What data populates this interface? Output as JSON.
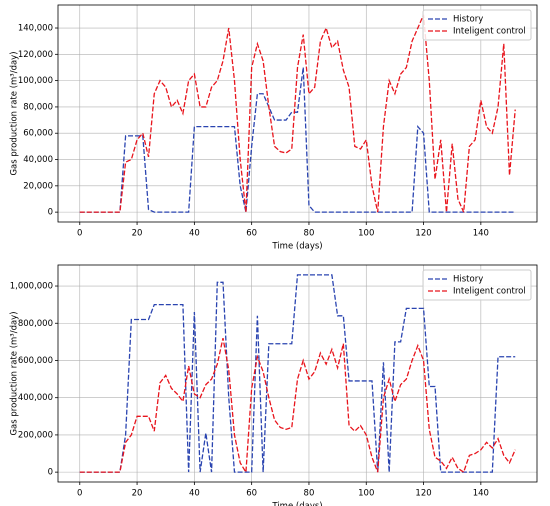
{
  "chart_data": [
    {
      "type": "line",
      "xlabel": "Time (days)",
      "ylabel": "Gas production rate (m³/day)",
      "x": [
        0,
        2,
        4,
        6,
        8,
        10,
        12,
        14,
        16,
        18,
        20,
        22,
        24,
        26,
        28,
        30,
        32,
        34,
        36,
        38,
        40,
        42,
        44,
        46,
        48,
        50,
        52,
        54,
        56,
        58,
        60,
        62,
        64,
        66,
        68,
        70,
        72,
        74,
        76,
        78,
        80,
        82,
        84,
        86,
        88,
        90,
        92,
        94,
        96,
        98,
        100,
        102,
        104,
        106,
        108,
        110,
        112,
        114,
        116,
        118,
        120,
        122,
        124,
        126,
        128,
        130,
        132,
        134,
        136,
        138,
        140,
        142,
        144,
        146,
        148,
        150,
        152
      ],
      "series": [
        {
          "name": "History",
          "color": "#2a44b0",
          "values": [
            0,
            0,
            0,
            0,
            0,
            0,
            0,
            0,
            58000,
            58000,
            58000,
            58000,
            2000,
            0,
            0,
            0,
            0,
            0,
            0,
            0,
            65000,
            65000,
            65000,
            65000,
            65000,
            65000,
            65000,
            65000,
            20000,
            0,
            50000,
            90000,
            90000,
            80000,
            70000,
            70000,
            70000,
            76000,
            76000,
            110000,
            5000,
            0,
            0,
            0,
            0,
            0,
            0,
            0,
            0,
            0,
            0,
            0,
            0,
            0,
            0,
            0,
            0,
            0,
            0,
            65000,
            60000,
            0,
            0,
            0,
            0,
            0,
            0,
            0,
            0,
            0,
            0,
            0,
            0,
            0,
            0,
            0,
            0
          ]
        },
        {
          "name": "Inteligent control",
          "color": "#e8141c",
          "values": [
            0,
            0,
            0,
            0,
            0,
            0,
            0,
            0,
            38000,
            40000,
            55000,
            60000,
            42000,
            90000,
            100000,
            95000,
            80000,
            85000,
            75000,
            100000,
            105000,
            80000,
            80000,
            95000,
            100000,
            115000,
            140000,
            100000,
            40000,
            0,
            110000,
            128000,
            115000,
            80000,
            50000,
            46000,
            45000,
            48000,
            110000,
            135000,
            90000,
            95000,
            130000,
            140000,
            125000,
            130000,
            108000,
            95000,
            50000,
            48000,
            55000,
            20000,
            0,
            65000,
            100000,
            90000,
            105000,
            110000,
            130000,
            140000,
            150000,
            100000,
            25000,
            55000,
            0,
            52000,
            10000,
            0,
            50000,
            55000,
            85000,
            65000,
            60000,
            80000,
            128000,
            28000,
            78000
          ]
        }
      ],
      "xlim": [
        -7.6,
        159.6
      ],
      "xticks": [
        0,
        20,
        40,
        60,
        80,
        100,
        120,
        140
      ],
      "ylim": [
        -7500,
        157500
      ],
      "yticks": [
        0,
        {
          "value": 20000,
          "label": "20,000"
        },
        {
          "value": 40000,
          "label": "40,000"
        },
        {
          "value": 60000,
          "label": "60,000"
        },
        {
          "value": 80000,
          "label": "80,000"
        },
        {
          "value": 100000,
          "label": "100,000"
        },
        {
          "value": 120000,
          "label": "120,000"
        },
        {
          "value": 140000,
          "label": "140,000"
        }
      ],
      "grid": true,
      "legend": "upper right"
    },
    {
      "type": "line",
      "xlabel": "Time (days)",
      "ylabel": "Gas production rate (m³/day)",
      "x": [
        0,
        2,
        4,
        6,
        8,
        10,
        12,
        14,
        16,
        18,
        20,
        22,
        24,
        26,
        28,
        30,
        32,
        34,
        36,
        38,
        40,
        42,
        44,
        46,
        48,
        50,
        52,
        54,
        56,
        58,
        60,
        62,
        64,
        66,
        68,
        70,
        72,
        74,
        76,
        78,
        80,
        82,
        84,
        86,
        88,
        90,
        92,
        94,
        96,
        98,
        100,
        102,
        104,
        106,
        108,
        110,
        112,
        114,
        116,
        118,
        120,
        122,
        124,
        126,
        128,
        130,
        132,
        134,
        136,
        138,
        140,
        142,
        144,
        146,
        148,
        150,
        152
      ],
      "series": [
        {
          "name": "History",
          "color": "#2a44b0",
          "values": [
            0,
            0,
            0,
            0,
            0,
            0,
            0,
            0,
            200000,
            820000,
            820000,
            820000,
            820000,
            900000,
            900000,
            900000,
            900000,
            900000,
            900000,
            0,
            860000,
            0,
            210000,
            0,
            1020000,
            1020000,
            400000,
            0,
            0,
            0,
            0,
            840000,
            0,
            690000,
            690000,
            690000,
            690000,
            690000,
            1060000,
            1060000,
            1060000,
            1060000,
            1060000,
            1060000,
            1060000,
            840000,
            840000,
            490000,
            490000,
            490000,
            490000,
            490000,
            0,
            590000,
            0,
            700000,
            700000,
            880000,
            880000,
            880000,
            880000,
            460000,
            460000,
            0,
            0,
            0,
            0,
            0,
            0,
            0,
            0,
            0,
            0,
            620000,
            620000,
            620000,
            620000
          ]
        },
        {
          "name": "Inteligent control",
          "color": "#e8141c",
          "values": [
            0,
            0,
            0,
            0,
            0,
            0,
            0,
            0,
            160000,
            200000,
            300000,
            300000,
            300000,
            220000,
            480000,
            520000,
            450000,
            420000,
            380000,
            570000,
            420000,
            400000,
            470000,
            500000,
            580000,
            720000,
            550000,
            200000,
            50000,
            0,
            450000,
            620000,
            540000,
            400000,
            280000,
            240000,
            230000,
            240000,
            500000,
            600000,
            500000,
            540000,
            640000,
            580000,
            660000,
            560000,
            690000,
            250000,
            220000,
            250000,
            200000,
            80000,
            0,
            400000,
            500000,
            380000,
            470000,
            500000,
            600000,
            680000,
            600000,
            230000,
            80000,
            60000,
            20000,
            80000,
            20000,
            0,
            90000,
            100000,
            120000,
            160000,
            130000,
            180000,
            90000,
            50000,
            120000
          ]
        }
      ],
      "xlim": [
        -7.6,
        159.6
      ],
      "xticks": [
        0,
        20,
        40,
        60,
        80,
        100,
        120,
        140
      ],
      "ylim": [
        -53000,
        1113000
      ],
      "yticks": [
        0,
        {
          "value": 200000,
          "label": "200,000"
        },
        {
          "value": 400000,
          "label": "400,000"
        },
        {
          "value": 600000,
          "label": "600,000"
        },
        {
          "value": 800000,
          "label": "800,000"
        },
        {
          "value": 1000000,
          "label": "1,000,000"
        }
      ],
      "grid": true,
      "legend": "upper right"
    }
  ]
}
